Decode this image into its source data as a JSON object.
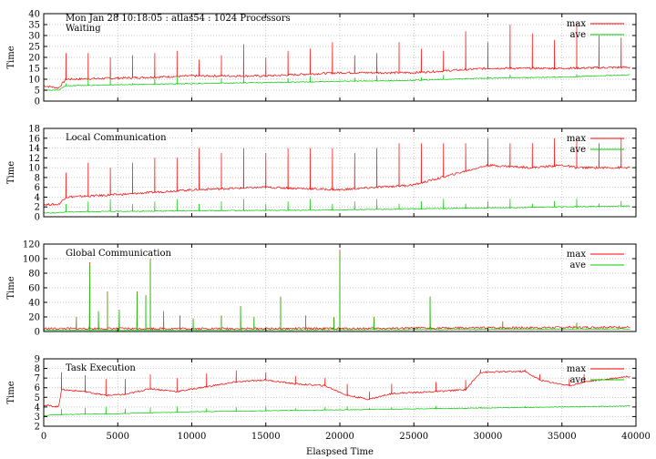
{
  "header": {
    "run_info": "Mon Jan 28 10:18:05 : atlas54 : 1024 Processors"
  },
  "colors": {
    "max": "#ff0000",
    "ave": "#00cc00",
    "grid": "#b0b0b0",
    "axis": "#000000"
  },
  "chart_data": [
    {
      "type": "line",
      "title": "Waiting",
      "ylabel": "Time",
      "xlabel": "",
      "xlim": [
        0,
        40000
      ],
      "ylim": [
        0,
        40
      ],
      "yticks": [
        0,
        5,
        10,
        15,
        20,
        25,
        30,
        35,
        40
      ],
      "grid": true,
      "legend": "top-right",
      "series": [
        {
          "name": "max",
          "x": [
            0,
            1000,
            1500,
            5000,
            10000,
            15000,
            20000,
            25000,
            30000,
            35000,
            39600
          ],
          "values": [
            7,
            6,
            10,
            10.5,
            11.5,
            11.5,
            13,
            13,
            15,
            15,
            15.5
          ]
        },
        {
          "name": "ave",
          "x": [
            0,
            1000,
            1500,
            5000,
            10000,
            15000,
            20000,
            25000,
            30000,
            35000,
            39600
          ],
          "values": [
            5,
            5,
            7,
            7.5,
            8,
            8.5,
            9,
            9.5,
            10.5,
            11,
            12
          ]
        }
      ]
    },
    {
      "type": "line",
      "title": "Local Communication",
      "ylabel": "Time",
      "xlabel": "",
      "xlim": [
        0,
        40000
      ],
      "ylim": [
        0,
        18
      ],
      "yticks": [
        0,
        2,
        4,
        6,
        8,
        10,
        12,
        14,
        16,
        18
      ],
      "grid": true,
      "legend": "top-right",
      "series": [
        {
          "name": "max",
          "x": [
            0,
            1000,
            1500,
            5000,
            10000,
            15000,
            20000,
            25000,
            30000,
            33000,
            35000,
            36000,
            39600
          ],
          "values": [
            2.5,
            2.5,
            4,
            4.5,
            5.5,
            6,
            5.5,
            6.5,
            10.5,
            10,
            10.5,
            10,
            10
          ]
        },
        {
          "name": "ave",
          "x": [
            0,
            1000,
            1500,
            5000,
            10000,
            15000,
            20000,
            25000,
            30000,
            35000,
            39600
          ],
          "values": [
            0.8,
            0.8,
            1,
            1.1,
            1.2,
            1.3,
            1.4,
            1.6,
            1.8,
            2,
            2.2
          ]
        }
      ]
    },
    {
      "type": "line",
      "title": "Global Communication",
      "ylabel": "Time",
      "xlabel": "",
      "xlim": [
        0,
        40000
      ],
      "ylim": [
        0,
        120
      ],
      "yticks": [
        0,
        20,
        40,
        60,
        80,
        100,
        120
      ],
      "grid": true,
      "legend": "top-right",
      "series": [
        {
          "name": "max",
          "x": [
            0,
            10000,
            20000,
            30000,
            39600
          ],
          "values": [
            4,
            4,
            4,
            5,
            6
          ]
        },
        {
          "name": "ave",
          "x": [
            0,
            10000,
            20000,
            30000,
            39600
          ],
          "values": [
            2,
            2,
            2.5,
            3,
            3.5
          ]
        }
      ]
    },
    {
      "type": "line",
      "title": "Task Execution",
      "ylabel": "Time",
      "xlabel": "Elaspsed Time",
      "xlim": [
        0,
        40000
      ],
      "ylim": [
        2,
        9
      ],
      "yticks": [
        2,
        3,
        4,
        5,
        6,
        7,
        8,
        9
      ],
      "xticks": [
        0,
        5000,
        10000,
        15000,
        20000,
        25000,
        30000,
        35000,
        40000
      ],
      "grid": true,
      "legend": "top-right",
      "series": [
        {
          "name": "max",
          "x": [
            0,
            1000,
            1200,
            2800,
            4200,
            5500,
            7200,
            9000,
            11000,
            13000,
            15000,
            17000,
            19000,
            20500,
            22000,
            23500,
            26500,
            28500,
            29500,
            32500,
            33500,
            35500,
            36500,
            39600
          ],
          "values": [
            4.2,
            4,
            5.8,
            5.6,
            5.2,
            5.3,
            5.9,
            5.6,
            6.1,
            6.6,
            6.8,
            6.4,
            6.2,
            5.2,
            4.8,
            5.4,
            5.6,
            5.8,
            7.6,
            7.7,
            6.8,
            6.2,
            6.6,
            7.2
          ]
        },
        {
          "name": "ave",
          "x": [
            0,
            1000,
            5000,
            10000,
            15000,
            20000,
            25000,
            30000,
            35000,
            39600
          ],
          "values": [
            3.1,
            3.2,
            3.3,
            3.5,
            3.6,
            3.7,
            3.8,
            3.9,
            4,
            4.1
          ]
        }
      ]
    }
  ]
}
